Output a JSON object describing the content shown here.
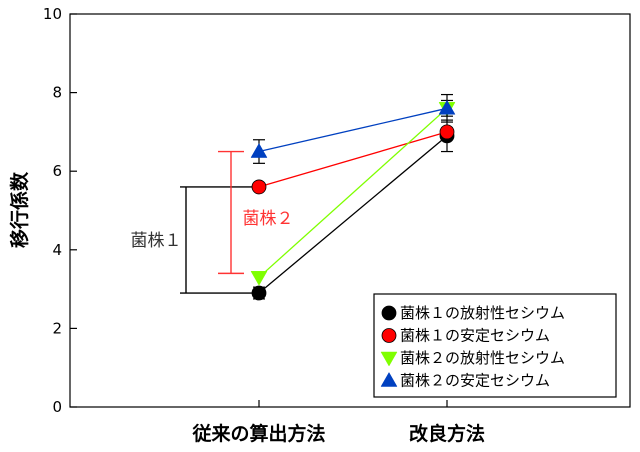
{
  "chart_data": {
    "type": "line",
    "categories": [
      "従来の算出方法",
      "改良方法"
    ],
    "ylabel": "移行係数",
    "xlabel": "",
    "ylim": [
      0,
      10
    ],
    "yticks": [
      0,
      2,
      4,
      6,
      8,
      10
    ],
    "grid": false,
    "legend_position": "bottom-right",
    "series": [
      {
        "name": "菌株１の放射性セシウム",
        "values": [
          2.9,
          6.9
        ],
        "errors": [
          0.15,
          0.4
        ],
        "color": "#000000",
        "marker": "circle"
      },
      {
        "name": "菌株１の安定セシウム",
        "values": [
          5.6,
          7.0
        ],
        "errors": [
          0.0,
          0.1
        ],
        "color": "#ff0000",
        "marker": "circle"
      },
      {
        "name": "菌株２の放射性セシウム",
        "values": [
          3.3,
          7.6
        ],
        "errors": [
          0.0,
          0.2
        ],
        "color": "#7fff00",
        "marker": "triangle-down"
      },
      {
        "name": "菌株２の安定セシウム",
        "values": [
          6.5,
          7.6
        ],
        "errors": [
          0.3,
          0.35
        ],
        "color": "#0040c0",
        "marker": "triangle-up"
      }
    ],
    "annotations": [
      {
        "text": "菌株１",
        "from": 2.9,
        "to": 5.6,
        "color": "#000000"
      },
      {
        "text": "菌株２",
        "from": 3.4,
        "to": 6.5,
        "color": "#ff3333"
      }
    ]
  }
}
